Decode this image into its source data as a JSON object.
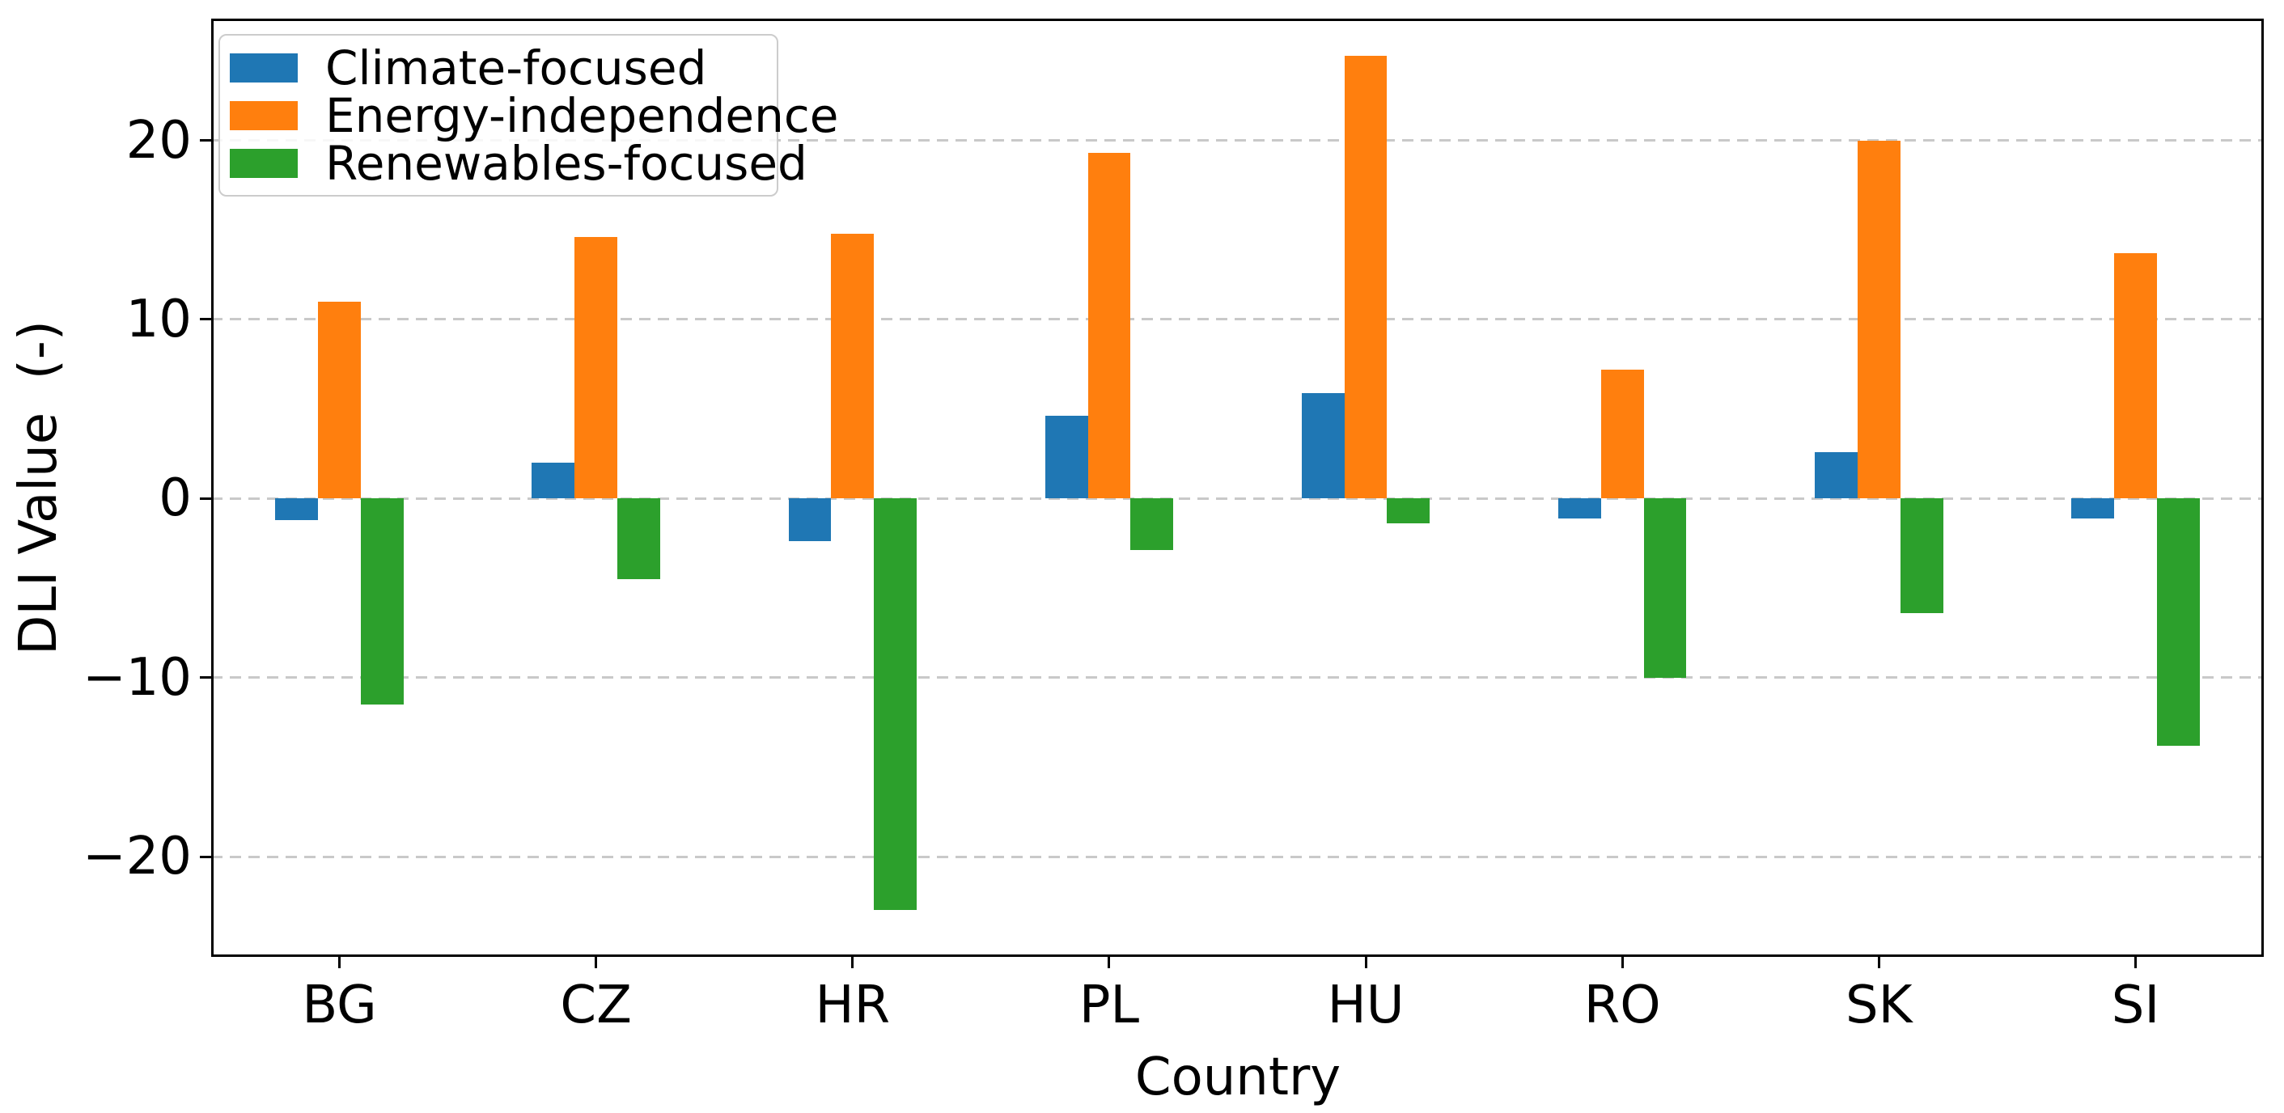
{
  "chart_data": {
    "type": "bar",
    "title": "",
    "xlabel": "Country",
    "ylabel": "DLI Value  (-)",
    "categories": [
      "BG",
      "CZ",
      "HR",
      "PL",
      "HU",
      "RO",
      "SK",
      "SI"
    ],
    "series": [
      {
        "name": "Climate-focused",
        "color": "#1f77b4",
        "values": [
          -1.2,
          2.0,
          -2.4,
          4.6,
          5.9,
          -1.1,
          2.6,
          -1.1
        ]
      },
      {
        "name": "Energy-independence",
        "color": "#ff7f0e",
        "values": [
          11.0,
          14.6,
          14.8,
          19.3,
          24.7,
          7.2,
          20.0,
          13.7
        ]
      },
      {
        "name": "Renewables-focused",
        "color": "#2ca02c",
        "values": [
          -11.5,
          -4.5,
          -23.0,
          -2.9,
          -1.4,
          -10.0,
          -6.4,
          -13.8
        ]
      }
    ],
    "ylim": [
      -25.6,
      26.8
    ],
    "yticks": [
      -20,
      -10,
      0,
      10,
      20
    ],
    "grid": "dashed-horizontal",
    "legend_position": "upper-left"
  },
  "colors": {
    "grid": "#c9c9c9",
    "axis": "#000000",
    "text": "#000000",
    "legend_border": "#cccccc"
  }
}
